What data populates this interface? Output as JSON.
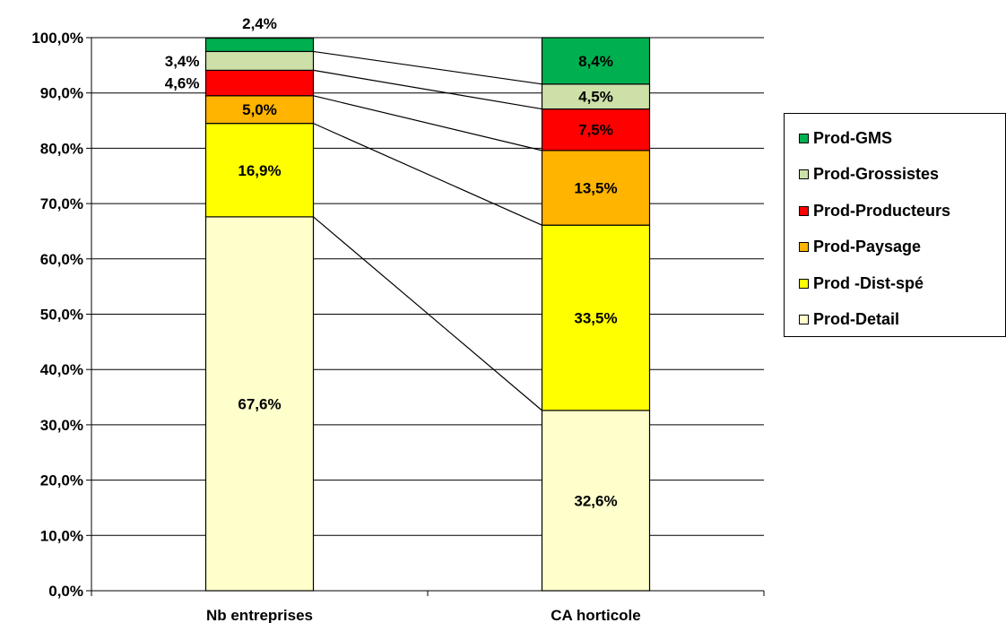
{
  "chart_data": {
    "type": "bar",
    "stacked": true,
    "categories": [
      "Nb entreprises",
      "CA horticole"
    ],
    "series": [
      {
        "name": "Prod-Detail",
        "values": [
          67.6,
          32.6
        ],
        "labels": [
          "67,6%",
          "32,6%"
        ],
        "color": "#FFFFCC"
      },
      {
        "name": "Prod -Dist-spé",
        "values": [
          16.9,
          33.5
        ],
        "labels": [
          "16,9%",
          "33,5%"
        ],
        "color": "#FFFF00"
      },
      {
        "name": "Prod-Paysage",
        "values": [
          5.0,
          13.5
        ],
        "labels": [
          "5,0%",
          "13,5%"
        ],
        "color": "#FFB400"
      },
      {
        "name": "Prod-Producteurs",
        "values": [
          4.6,
          7.5
        ],
        "labels": [
          "4,6%",
          "7,5%"
        ],
        "color": "#FF0000"
      },
      {
        "name": "Prod-Grossistes",
        "values": [
          3.4,
          4.5
        ],
        "labels": [
          "3,4%",
          "4,5%"
        ],
        "color": "#CCE0A8"
      },
      {
        "name": "Prod-GMS",
        "values": [
          2.4,
          8.4
        ],
        "labels": [
          "2,4%",
          "8,4%"
        ],
        "color": "#00B050"
      }
    ],
    "y_ticks": [
      "0,0%",
      "10,0%",
      "20,0%",
      "30,0%",
      "40,0%",
      "50,0%",
      "60,0%",
      "70,0%",
      "80,0%",
      "90,0%",
      "100,0%"
    ],
    "ylim": [
      0,
      100
    ],
    "grid": true,
    "connector_lines": true,
    "legend_position": "right",
    "title": "",
    "xlabel": "",
    "ylabel": ""
  }
}
